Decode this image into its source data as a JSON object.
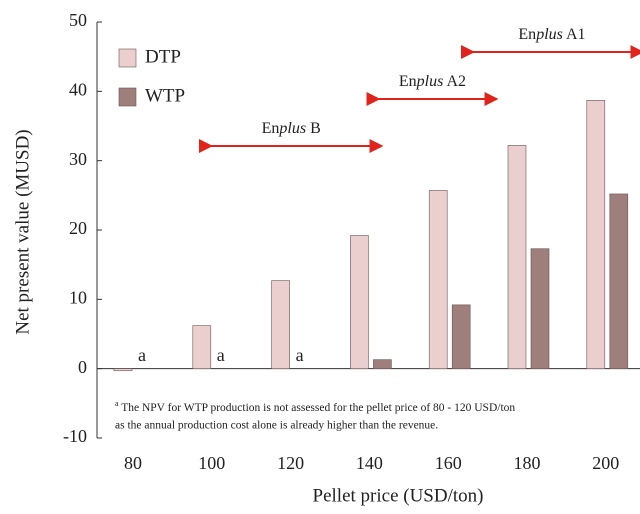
{
  "chart_data": {
    "type": "bar",
    "x_label": "Pellet price (USD/ton)",
    "y_label": "Net present value (MUSD)",
    "categories": [
      "80",
      "100",
      "120",
      "140",
      "160",
      "180",
      "200"
    ],
    "series": [
      {
        "name": "DTP",
        "color": "#ebcfcf",
        "values": [
          -0.3,
          6.2,
          12.7,
          19.2,
          25.7,
          32.2,
          38.7
        ]
      },
      {
        "name": "WTP",
        "color": "#9e7f7c",
        "values": [
          null,
          null,
          null,
          1.3,
          9.2,
          17.3,
          25.2
        ],
        "value_labels": [
          "a",
          "a",
          "a",
          null,
          null,
          null,
          null
        ]
      }
    ],
    "ylim": [
      -10,
      50
    ],
    "yticks": [
      -10,
      0,
      10,
      20,
      30,
      40,
      50
    ],
    "legend": "upper left",
    "annotations": [
      {
        "prefix": "En",
        "italic": "plus",
        "suffix": " B",
        "from": 97.5,
        "to": 142.8
      },
      {
        "prefix": "En",
        "italic": "plus",
        "suffix": " A2",
        "from": 140,
        "to": 172
      },
      {
        "prefix": "En",
        "italic": "plus",
        "suffix": " A1",
        "from": 164,
        "to": 209
      }
    ],
    "note_marker": "a",
    "note_lines": [
      " The NPV for WTP production is not assessed for the pellet price of 80 - 120 USD/ton",
      "as the annual production cost alone is already higher than the revenue."
    ]
  }
}
